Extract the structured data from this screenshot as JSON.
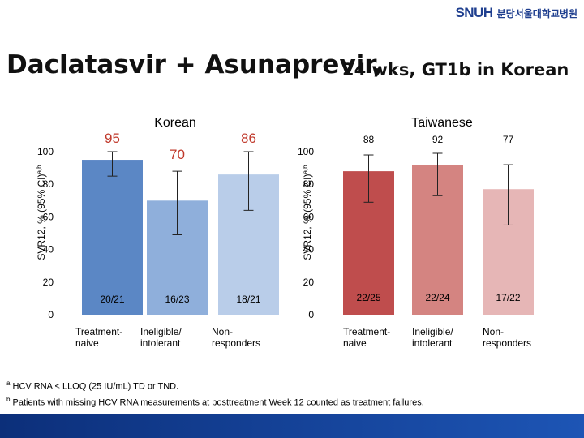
{
  "header": {
    "logo_text": "SNUH",
    "hospital_name": "분당서울대학교병원",
    "title_main": "Daclatasvir + Asunaprevir,",
    "title_sub": "24 wks, GT1b in Korean"
  },
  "chart_data": [
    {
      "type": "bar",
      "title": "Korean",
      "ylabel": "SVR12, % (95% CI)a,b",
      "ylabel_text": "SVR12, % (95% CI)",
      "ylabel_sup": "a,b",
      "ylim": [
        0,
        100
      ],
      "yticks": [
        0,
        20,
        40,
        60,
        80,
        100
      ],
      "grid": false,
      "categories": [
        "Treatment-naive",
        "Ineligible/intolerant",
        "Non-responders"
      ],
      "category_lines": [
        [
          "Treatment-",
          "naive"
        ],
        [
          "Ineligible/",
          "intolerant"
        ],
        [
          "Non-",
          "responders"
        ]
      ],
      "values": [
        95,
        70,
        86
      ],
      "value_labels": [
        "95",
        "70",
        "86"
      ],
      "ci": [
        [
          85,
          100
        ],
        [
          49,
          88
        ],
        [
          64,
          100
        ]
      ],
      "counts": [
        "20/21",
        "16/23",
        "18/21"
      ],
      "colors": [
        "#5b87c5",
        "#8fafdb",
        "#b9cde9"
      ],
      "value_label_color": "#c0392b"
    },
    {
      "type": "bar",
      "title": "Taiwanese",
      "ylabel": "SVR12, % (95% CI)a,b",
      "ylabel_text": "SVR12, % (95% CI)",
      "ylabel_sup": "a,b",
      "ylim": [
        0,
        100
      ],
      "yticks": [
        0,
        20,
        40,
        60,
        80,
        100
      ],
      "grid": false,
      "categories": [
        "Treatment-naive",
        "Ineligible/intolerant",
        "Non-responders"
      ],
      "category_lines": [
        [
          "Treatment-",
          "naive"
        ],
        [
          "Ineligible/",
          "intolerant"
        ],
        [
          "Non-",
          "responders"
        ]
      ],
      "values": [
        88,
        92,
        77
      ],
      "value_labels": [
        "88",
        "92",
        "77"
      ],
      "ci": [
        [
          69,
          98
        ],
        [
          73,
          99
        ],
        [
          55,
          92
        ]
      ],
      "counts": [
        "22/25",
        "22/24",
        "17/22"
      ],
      "colors": [
        "#bf4d4d",
        "#d48481",
        "#e6b6b6"
      ],
      "value_label_color": "#000000"
    }
  ],
  "footnotes": [
    {
      "mark": "a",
      "text": "HCV RNA < LLOQ (25 IU/mL) TD or TND."
    },
    {
      "mark": "b",
      "text": "Patients with missing HCV RNA measurements at posttreatment Week 12 counted as treatment failures."
    }
  ]
}
